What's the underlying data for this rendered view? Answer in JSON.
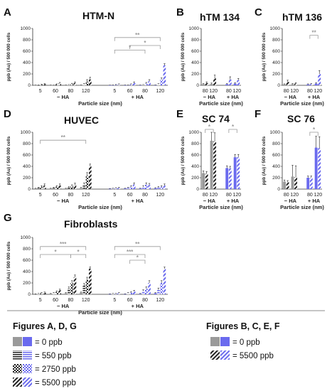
{
  "legend": {
    "left_title": "Figures A, D, G",
    "left_items": [
      "= 0 ppb",
      "= 550 ppb",
      "= 2750 ppb",
      "= 5500 ppb"
    ],
    "right_title": "Figures B, C, E, F",
    "right_items": [
      "= 0 ppb",
      "= 5500 ppb"
    ]
  },
  "colors": {
    "gray": "#9a9a9a",
    "blue": "#6a6aee",
    "dark": "#222222",
    "sig": "#999999"
  },
  "chart_data": [
    {
      "id": "A",
      "letter": "A",
      "title": "HTM-N",
      "type": "bar",
      "ylabel": "ppb (Au) / 500 000 cells",
      "xlabel": "Particle size (nm)",
      "ylim": [
        0,
        1000
      ],
      "yticks": [
        0,
        200,
        400,
        600,
        800,
        1000
      ],
      "categories": [
        "5",
        "60",
        "80",
        "120",
        "5",
        "60",
        "80",
        "120"
      ],
      "groups": [
        {
          "label": "− HA",
          "from": 0,
          "to": 3
        },
        {
          "label": "+ HA",
          "from": 4,
          "to": 7
        }
      ],
      "series": [
        {
          "name": "0 ppb",
          "values": [
            2,
            3,
            3,
            4,
            2,
            3,
            3,
            4
          ],
          "errors": [
            2,
            2,
            2,
            2,
            2,
            2,
            2,
            2
          ]
        },
        {
          "name": "550 ppb",
          "values": [
            4,
            6,
            8,
            20,
            3,
            5,
            8,
            18
          ],
          "errors": [
            3,
            4,
            5,
            10,
            3,
            4,
            5,
            10
          ]
        },
        {
          "name": "2750 ppb",
          "values": [
            10,
            15,
            20,
            60,
            8,
            15,
            30,
            100
          ],
          "errors": [
            8,
            10,
            15,
            40,
            6,
            10,
            20,
            30
          ]
        },
        {
          "name": "5500 ppb",
          "values": [
            20,
            35,
            40,
            100,
            15,
            40,
            70,
            350
          ],
          "errors": [
            10,
            15,
            20,
            40,
            10,
            20,
            30,
            30
          ]
        }
      ],
      "sig": [
        {
          "from": 4,
          "to": 7,
          "label": "**",
          "level": 840
        },
        {
          "from": 5,
          "to": 7,
          "label": "*",
          "level": 700
        },
        {
          "from": 4,
          "to": 6,
          "label": "*",
          "level": 620
        }
      ]
    },
    {
      "id": "B",
      "letter": "B",
      "title": "hTM 134",
      "type": "bar",
      "ylabel": "ppb (Au) / 500 000 cells",
      "xlabel": "Particle size (nm)",
      "ylim": [
        0,
        1000
      ],
      "yticks": [
        0,
        200,
        400,
        600,
        800,
        1000
      ],
      "categories": [
        "80",
        "120",
        "80",
        "120"
      ],
      "groups": [
        {
          "label": "− HA",
          "from": 0,
          "to": 1
        },
        {
          "label": "+ HA",
          "from": 2,
          "to": 3
        }
      ],
      "series": [
        {
          "name": "0 ppb",
          "values": [
            20,
            25,
            20,
            30
          ],
          "errors": [
            10,
            15,
            10,
            15
          ]
        },
        {
          "name": "5500 ppb",
          "values": [
            40,
            120,
            100,
            90
          ],
          "errors": [
            20,
            60,
            50,
            30
          ]
        }
      ],
      "sig": []
    },
    {
      "id": "C",
      "letter": "C",
      "title": "hTM 136",
      "type": "bar",
      "ylabel": "ppb (Au) / 500 000 cells",
      "xlabel": "Particle size (nm)",
      "ylim": [
        0,
        1000
      ],
      "yticks": [
        0,
        200,
        400,
        600,
        800,
        1000
      ],
      "categories": [
        "80",
        "120",
        "80",
        "120"
      ],
      "groups": [
        {
          "label": "− HA",
          "from": 0,
          "to": 1
        },
        {
          "label": "+ HA",
          "from": 2,
          "to": 3
        }
      ],
      "series": [
        {
          "name": "0 ppb",
          "values": [
            15,
            20,
            15,
            30
          ],
          "errors": [
            10,
            10,
            10,
            15
          ]
        },
        {
          "name": "5500 ppb",
          "values": [
            60,
            30,
            20,
            200
          ],
          "errors": [
            30,
            15,
            10,
            60
          ]
        }
      ],
      "sig": [
        {
          "from": 2,
          "to": 3,
          "label": "**",
          "level": 880
        }
      ]
    },
    {
      "id": "D",
      "letter": "D",
      "title": "HUVEC",
      "type": "bar",
      "ylabel": "ppb (Au) / 500 000 cells",
      "xlabel": "Particle size (nm)",
      "ylim": [
        0,
        1000
      ],
      "yticks": [
        0,
        200,
        400,
        600,
        800,
        1000
      ],
      "categories": [
        "5",
        "60",
        "80",
        "120",
        "5",
        "60",
        "80",
        "120"
      ],
      "groups": [
        {
          "label": "− HA",
          "from": 0,
          "to": 3
        },
        {
          "label": "+ HA",
          "from": 4,
          "to": 7
        }
      ],
      "series": [
        {
          "name": "0 ppb",
          "values": [
            10,
            10,
            10,
            20,
            5,
            10,
            10,
            15
          ],
          "errors": [
            5,
            5,
            5,
            10,
            5,
            5,
            5,
            10
          ]
        },
        {
          "name": "550 ppb",
          "values": [
            20,
            20,
            30,
            80,
            10,
            20,
            40,
            30
          ],
          "errors": [
            10,
            10,
            15,
            30,
            5,
            10,
            20,
            15
          ]
        },
        {
          "name": "2750 ppb",
          "values": [
            40,
            40,
            50,
            230,
            15,
            40,
            80,
            40
          ],
          "errors": [
            20,
            20,
            25,
            60,
            10,
            20,
            30,
            20
          ]
        },
        {
          "name": "5500 ppb",
          "values": [
            60,
            60,
            70,
            400,
            20,
            80,
            70,
            60
          ],
          "errors": [
            30,
            30,
            35,
            40,
            10,
            30,
            30,
            30
          ]
        }
      ],
      "sig": [
        {
          "from": 0,
          "to": 3,
          "label": "**",
          "level": 860
        }
      ]
    },
    {
      "id": "E",
      "letter": "E",
      "title": "SC 74",
      "type": "bar",
      "ylabel": "ppb (Au) / 500 000 cells",
      "xlabel": "Particle size (nm)",
      "ylim": [
        0,
        1000
      ],
      "yticks": [
        0,
        200,
        400,
        600,
        800,
        1000
      ],
      "categories": [
        "80",
        "120",
        "80",
        "120"
      ],
      "groups": [
        {
          "label": "− HA",
          "from": 0,
          "to": 1
        },
        {
          "label": "+ HA",
          "from": 2,
          "to": 3
        }
      ],
      "series": [
        {
          "name": "0 ppb",
          "values": [
            280,
            850,
            370,
            560
          ],
          "errors": [
            40,
            150,
            40,
            50
          ]
        },
        {
          "name": "5500 ppb",
          "values": [
            270,
            840,
            360,
            560
          ],
          "errors": [
            40,
            150,
            40,
            50
          ]
        }
      ],
      "sig": [
        {
          "from": 0,
          "to": 1,
          "label": "*",
          "level": 1050
        },
        {
          "from": 2,
          "to": 3,
          "label": "*",
          "level": 1050
        }
      ]
    },
    {
      "id": "F",
      "letter": "F",
      "title": "SC 76",
      "type": "bar",
      "ylabel": "ppb (Au) / 500 000 cells",
      "xlabel": "Particle size (nm)",
      "ylim": [
        0,
        1000
      ],
      "yticks": [
        0,
        200,
        400,
        600,
        800,
        1000
      ],
      "categories": [
        "80",
        "120",
        "80",
        "120"
      ],
      "groups": [
        {
          "label": "− HA",
          "from": 0,
          "to": 1
        },
        {
          "label": "+ HA",
          "from": 2,
          "to": 3
        }
      ],
      "series": [
        {
          "name": "0 ppb",
          "values": [
            130,
            220,
            200,
            730
          ],
          "errors": [
            30,
            200,
            30,
            200
          ]
        },
        {
          "name": "5500 ppb",
          "values": [
            120,
            210,
            200,
            720
          ],
          "errors": [
            30,
            200,
            30,
            200
          ]
        }
      ],
      "sig": [
        {
          "from": 2,
          "to": 3,
          "label": "*",
          "level": 1000
        }
      ]
    },
    {
      "id": "G",
      "letter": "G",
      "title": "Fibroblasts",
      "type": "bar",
      "ylabel": "ppb (Au) / 500 000 cells",
      "xlabel": "Particle size (nm)",
      "ylim": [
        0,
        1000
      ],
      "yticks": [
        0,
        200,
        400,
        600,
        800,
        1000
      ],
      "categories": [
        "5",
        "60",
        "80",
        "120",
        "5",
        "60",
        "80",
        "120"
      ],
      "groups": [
        {
          "label": "− HA",
          "from": 0,
          "to": 3
        },
        {
          "label": "+ HA",
          "from": 4,
          "to": 7
        }
      ],
      "series": [
        {
          "name": "0 ppb",
          "values": [
            5,
            10,
            20,
            30,
            5,
            5,
            10,
            20
          ],
          "errors": [
            3,
            5,
            10,
            10,
            3,
            3,
            5,
            10
          ]
        },
        {
          "name": "550 ppb",
          "values": [
            10,
            20,
            100,
            150,
            10,
            20,
            60,
            80
          ],
          "errors": [
            5,
            10,
            30,
            40,
            5,
            10,
            20,
            30
          ]
        },
        {
          "name": "2750 ppb",
          "values": [
            20,
            40,
            200,
            250,
            10,
            30,
            100,
            200
          ],
          "errors": [
            10,
            20,
            40,
            50,
            5,
            15,
            30,
            40
          ]
        },
        {
          "name": "5500 ppb",
          "values": [
            30,
            70,
            300,
            450,
            20,
            50,
            200,
            450
          ],
          "errors": [
            10,
            20,
            40,
            30,
            10,
            20,
            40,
            30
          ]
        }
      ],
      "sig": [
        {
          "from": 0,
          "to": 3,
          "label": "***",
          "level": 840
        },
        {
          "from": 0,
          "to": 2,
          "label": "*",
          "level": 700
        },
        {
          "from": 2,
          "to": 3,
          "label": "*",
          "level": 700
        },
        {
          "from": 4,
          "to": 7,
          "label": "**",
          "level": 840
        },
        {
          "from": 4,
          "to": 6,
          "label": "***",
          "level": 700
        },
        {
          "from": 5,
          "to": 6,
          "label": "*",
          "level": 600
        }
      ]
    }
  ]
}
